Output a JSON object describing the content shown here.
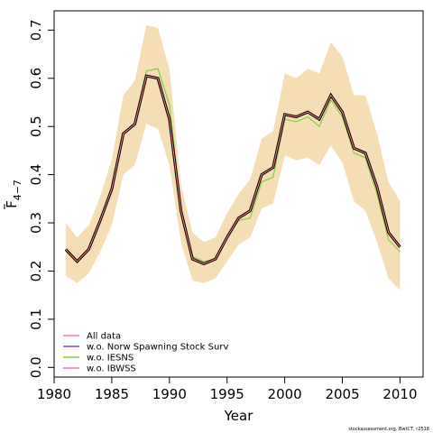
{
  "chart_data": {
    "type": "line",
    "xlabel": "Year",
    "ylabel_main": "F",
    "ylabel_sub": "4−7",
    "xlim": [
      1980,
      2012
    ],
    "ylim": [
      -0.02,
      0.74
    ],
    "x_ticks": [
      1980,
      1985,
      1990,
      1995,
      2000,
      2005,
      2010
    ],
    "y_ticks": [
      0.0,
      0.1,
      0.2,
      0.3,
      0.4,
      0.5,
      0.6,
      0.7
    ],
    "y_tick_labels": [
      "0.0",
      "0.1",
      "0.2",
      "0.3",
      "0.4",
      "0.5",
      "0.6",
      "0.7"
    ],
    "years": [
      1981,
      1982,
      1983,
      1984,
      1985,
      1986,
      1987,
      1988,
      1989,
      1990,
      1991,
      1992,
      1993,
      1994,
      1995,
      1996,
      1997,
      1998,
      1999,
      2000,
      2001,
      2002,
      2003,
      2004,
      2005,
      2006,
      2007,
      2008,
      2009,
      2010
    ],
    "ci_band": {
      "color": "#f5deb3",
      "lower": [
        0.19,
        0.175,
        0.195,
        0.24,
        0.295,
        0.4,
        0.42,
        0.505,
        0.495,
        0.42,
        0.26,
        0.18,
        0.175,
        0.185,
        0.22,
        0.255,
        0.27,
        0.33,
        0.34,
        0.44,
        0.43,
        0.435,
        0.42,
        0.46,
        0.425,
        0.345,
        0.325,
        0.26,
        0.185,
        0.16
      ],
      "upper": [
        0.3,
        0.27,
        0.295,
        0.355,
        0.43,
        0.565,
        0.595,
        0.71,
        0.705,
        0.62,
        0.38,
        0.28,
        0.26,
        0.27,
        0.32,
        0.36,
        0.39,
        0.475,
        0.49,
        0.61,
        0.6,
        0.62,
        0.61,
        0.675,
        0.645,
        0.565,
        0.565,
        0.485,
        0.385,
        0.345
      ]
    },
    "series": [
      {
        "name": "All data",
        "color": "#ff7f7f",
        "values": [
          0.245,
          0.22,
          0.245,
          0.305,
          0.37,
          0.485,
          0.505,
          0.605,
          0.6,
          0.515,
          0.325,
          0.225,
          0.215,
          0.225,
          0.27,
          0.31,
          0.325,
          0.4,
          0.415,
          0.525,
          0.52,
          0.53,
          0.515,
          0.565,
          0.53,
          0.455,
          0.445,
          0.375,
          0.28,
          0.25
        ]
      },
      {
        "name": "w.o. Norw Spawning Stock Surv",
        "color": "#8844cc",
        "values": [
          0.245,
          0.22,
          0.245,
          0.305,
          0.37,
          0.485,
          0.505,
          0.605,
          0.6,
          0.515,
          0.325,
          0.225,
          0.215,
          0.225,
          0.27,
          0.31,
          0.325,
          0.4,
          0.415,
          0.525,
          0.52,
          0.53,
          0.515,
          0.565,
          0.53,
          0.455,
          0.445,
          0.375,
          0.28,
          0.25
        ]
      },
      {
        "name": "w.o. IESNS",
        "color": "#88cc44",
        "values": [
          0.245,
          0.22,
          0.245,
          0.305,
          0.37,
          0.485,
          0.505,
          0.615,
          0.62,
          0.545,
          0.33,
          0.23,
          0.22,
          0.225,
          0.27,
          0.305,
          0.31,
          0.385,
          0.395,
          0.515,
          0.51,
          0.52,
          0.5,
          0.555,
          0.52,
          0.445,
          0.435,
          0.36,
          0.265,
          0.24
        ]
      },
      {
        "name": "w.o. IBWSS",
        "color": "#ff66cc",
        "values": [
          0.245,
          0.22,
          0.245,
          0.305,
          0.37,
          0.485,
          0.505,
          0.605,
          0.6,
          0.515,
          0.325,
          0.225,
          0.215,
          0.225,
          0.27,
          0.31,
          0.325,
          0.4,
          0.415,
          0.525,
          0.52,
          0.53,
          0.515,
          0.565,
          0.53,
          0.455,
          0.445,
          0.375,
          0.28,
          0.25
        ]
      }
    ],
    "main_line_color": "#000000",
    "legend_position": "bottom-left",
    "grid": false,
    "footnote": "stockassessment.org, BwtCT, r2518"
  }
}
